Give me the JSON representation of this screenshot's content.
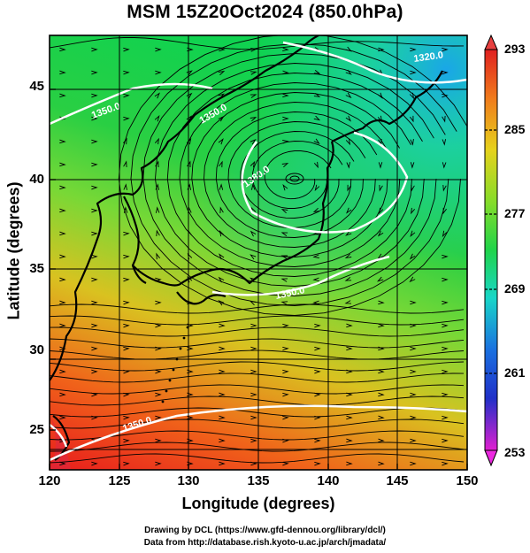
{
  "title": "MSM 15Z20Oct2024 (850.0hPa)",
  "x_axis": {
    "label": "Longitude (degrees)",
    "ticks": [
      "120",
      "125",
      "130",
      "135",
      "140",
      "145",
      "150"
    ]
  },
  "y_axis": {
    "label": "Latitude  (degrees)",
    "ticks": [
      "25",
      "30",
      "35",
      "40",
      "45"
    ]
  },
  "colorbar": {
    "ticks": [
      "293",
      "285",
      "277",
      "269",
      "261",
      "253"
    ],
    "range": [
      253,
      293
    ]
  },
  "contours": {
    "labels": [
      "1320.0",
      "1350.0",
      "1380.0"
    ]
  },
  "credits": {
    "line1": "Drawing by DCL (https://www.gfd-dennou.org/library/dcl/)",
    "line2": "Data from http://database.rish.kyoto-u.ac.jp/arch/jmadata/"
  },
  "map": {
    "lon_range": [
      120,
      150
    ],
    "lat_range": [
      22.5,
      47.5
    ],
    "low_center": {
      "lon": 137.5,
      "lat": 40.0
    }
  }
}
